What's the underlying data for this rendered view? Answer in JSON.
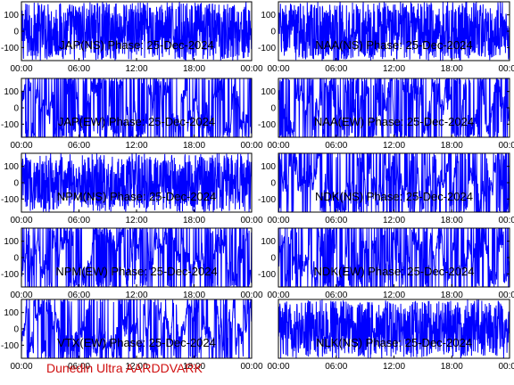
{
  "footer_label": "Dunedin Ultra AARDDVARK",
  "colors": {
    "trace": "#0000ff",
    "axes": "#000000",
    "footer": "#d01010"
  },
  "chart_data": [
    {
      "type": "line",
      "title": "JAP(NS) Phase: 25-Dec-2024",
      "station": "JAP",
      "component": "NS",
      "xlim": [
        "00:00",
        "24:00"
      ],
      "xticks": [
        "00:00",
        "06:00",
        "12:00",
        "18:00",
        "00:00"
      ],
      "ylim": [
        -180,
        180
      ],
      "yticks": [
        100,
        0,
        -100
      ],
      "y_axis_side": "left",
      "trace": {
        "style": "dense",
        "amplitude": 180,
        "spike_fraction": 0.05
      }
    },
    {
      "type": "line",
      "title": "NAA(NS) Phase: 25-Dec-2024",
      "station": "NAA",
      "component": "NS",
      "xlim": [
        "00:00",
        "24:00"
      ],
      "xticks": [
        "00:00",
        "06:00",
        "12:00",
        "18:00",
        "00:00"
      ],
      "ylim": [
        -180,
        180
      ],
      "yticks": [
        100,
        0,
        -100
      ],
      "y_axis_side": "right",
      "trace": {
        "style": "dense",
        "amplitude": 180,
        "spike_fraction": 0.05
      }
    },
    {
      "type": "line",
      "title": "JAP(EW) Phase: 25-Dec-2024",
      "station": "JAP",
      "component": "EW",
      "xlim": [
        "00:00",
        "24:00"
      ],
      "xticks": [
        "00:00",
        "06:00",
        "12:00",
        "18:00",
        "00:00"
      ],
      "ylim": [
        -180,
        180
      ],
      "yticks": [
        100,
        0,
        -100
      ],
      "y_axis_side": "left",
      "trace": {
        "style": "wrapping",
        "amplitude": 180,
        "spike_fraction": 0.25
      }
    },
    {
      "type": "line",
      "title": "NAA(EW) Phase: 25-Dec-2024",
      "station": "NAA",
      "component": "EW",
      "xlim": [
        "00:00",
        "24:00"
      ],
      "xticks": [
        "00:00",
        "06:00",
        "12:00",
        "18:00",
        "00:00"
      ],
      "ylim": [
        -180,
        180
      ],
      "yticks": [
        100,
        0,
        -100
      ],
      "y_axis_side": "right",
      "trace": {
        "style": "wrapping",
        "amplitude": 180,
        "spike_fraction": 0.25
      }
    },
    {
      "type": "line",
      "title": "NPM(NS) Phase: 25-Dec-2024",
      "station": "NPM",
      "component": "NS",
      "xlim": [
        "00:00",
        "24:00"
      ],
      "xticks": [
        "00:00",
        "06:00",
        "12:00",
        "18:00",
        "00:00"
      ],
      "ylim": [
        -180,
        180
      ],
      "yticks": [
        100,
        0,
        -100
      ],
      "y_axis_side": "left",
      "trace": {
        "style": "dense",
        "amplitude": 180,
        "spike_fraction": 0.04
      }
    },
    {
      "type": "line",
      "title": "NDK(NS) Phase: 25-Dec-2024",
      "station": "NDK",
      "component": "NS",
      "xlim": [
        "00:00",
        "24:00"
      ],
      "xticks": [
        "00:00",
        "06:00",
        "12:00",
        "18:00",
        "00:00"
      ],
      "ylim": [
        -180,
        180
      ],
      "yticks": [
        100,
        0,
        -100
      ],
      "y_axis_side": "right",
      "trace": {
        "style": "wrapping",
        "amplitude": 180,
        "spike_fraction": 0.3
      }
    },
    {
      "type": "line",
      "title": "NPM(EW) Phase: 25-Dec-2024",
      "station": "NPM",
      "component": "EW",
      "xlim": [
        "00:00",
        "24:00"
      ],
      "xticks": [
        "00:00",
        "06:00",
        "12:00",
        "18:00",
        "00:00"
      ],
      "ylim": [
        -180,
        180
      ],
      "yticks": [
        100,
        0,
        -100
      ],
      "y_axis_side": "left",
      "trace": {
        "style": "wrapping",
        "amplitude": 180,
        "spike_fraction": 0.25
      }
    },
    {
      "type": "line",
      "title": "NDK(EW) Phase: 25-Dec-2024",
      "station": "NDK",
      "component": "EW",
      "xlim": [
        "00:00",
        "24:00"
      ],
      "xticks": [
        "00:00",
        "06:00",
        "12:00",
        "18:00",
        "00:00"
      ],
      "ylim": [
        -180,
        180
      ],
      "yticks": [
        100,
        0,
        -100
      ],
      "y_axis_side": "right",
      "trace": {
        "style": "wrapping",
        "amplitude": 180,
        "spike_fraction": 0.3
      }
    },
    {
      "type": "line",
      "title": "VTX(EW) Phase: 25-Dec-2024",
      "station": "VTX",
      "component": "EW",
      "xlim": [
        "00:00",
        "24:00"
      ],
      "xticks": [
        "00:00",
        "06:00",
        "12:00",
        "18:00",
        "00:00"
      ],
      "ylim": [
        -180,
        180
      ],
      "yticks": [
        100,
        0,
        -100
      ],
      "y_axis_side": "left",
      "trace": {
        "style": "wrapping",
        "amplitude": 180,
        "spike_fraction": 0.2
      }
    },
    {
      "type": "line",
      "title": "NLK(NS) Phase: 25-Dec-2024",
      "station": "NLK",
      "component": "NS",
      "xlim": [
        "00:00",
        "24:00"
      ],
      "xticks": [
        "00:00",
        "06:00",
        "12:00",
        "18:00",
        "00:00"
      ],
      "ylim": [
        -180,
        180
      ],
      "yticks": [],
      "y_axis_side": "right",
      "trace": {
        "style": "dense",
        "amplitude": 180,
        "spike_fraction": 0.03
      }
    }
  ]
}
